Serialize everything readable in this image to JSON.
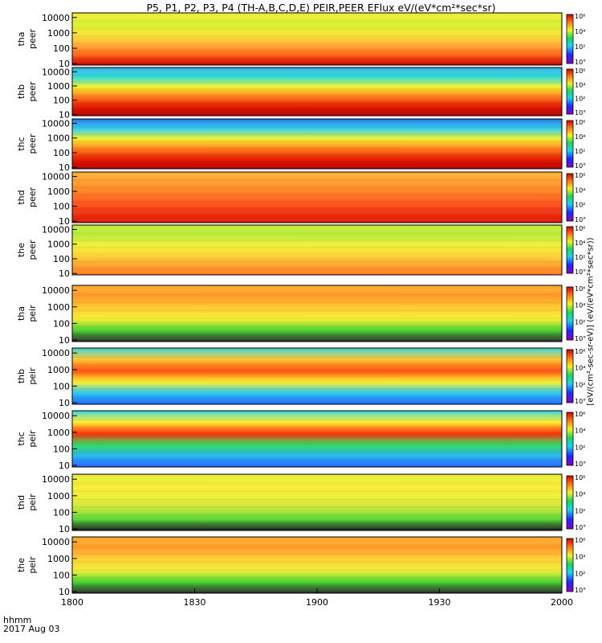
{
  "title": "P5, P1, P2, P3, P4 (TH-A,B,C,D,E) PEIR,PEER EFlux eV/(eV*cm²*sec*sr)",
  "time_label": "hhmm",
  "date_label": "2017 Aug 03",
  "colorbar_label": "[eV/(cm²-sec-sr-eV)] (eV/(eV*cm²*sec*sr))",
  "chart_data": {
    "type": "heatmap",
    "x_axis": {
      "range": [
        "1800",
        "2000"
      ],
      "ticks": [
        "1800",
        "1830",
        "1900",
        "1930",
        "2000"
      ]
    },
    "y_axis": {
      "scale": "log",
      "range": [
        8,
        20000
      ],
      "ticks": [
        "10",
        "100",
        "1000",
        "10000"
      ]
    },
    "colorbar": {
      "scale": "log",
      "range": [
        1,
        1000000
      ],
      "ticks": [
        "10°",
        "10²",
        "10⁴",
        "10⁶"
      ]
    },
    "panels": [
      {
        "label_top": "tha",
        "label_bottom": "peer"
      },
      {
        "label_top": "thb",
        "label_bottom": "peer"
      },
      {
        "label_top": "thc",
        "label_bottom": "peer"
      },
      {
        "label_top": "thd",
        "label_bottom": "peer"
      },
      {
        "label_top": "the",
        "label_bottom": "peer"
      },
      {
        "label_top": "tha",
        "label_bottom": "peir"
      },
      {
        "label_top": "thb",
        "label_bottom": "peir"
      },
      {
        "label_top": "thc",
        "label_bottom": "peir"
      },
      {
        "label_top": "thd",
        "label_bottom": "peir"
      },
      {
        "label_top": "the",
        "label_bottom": "peir"
      }
    ]
  }
}
